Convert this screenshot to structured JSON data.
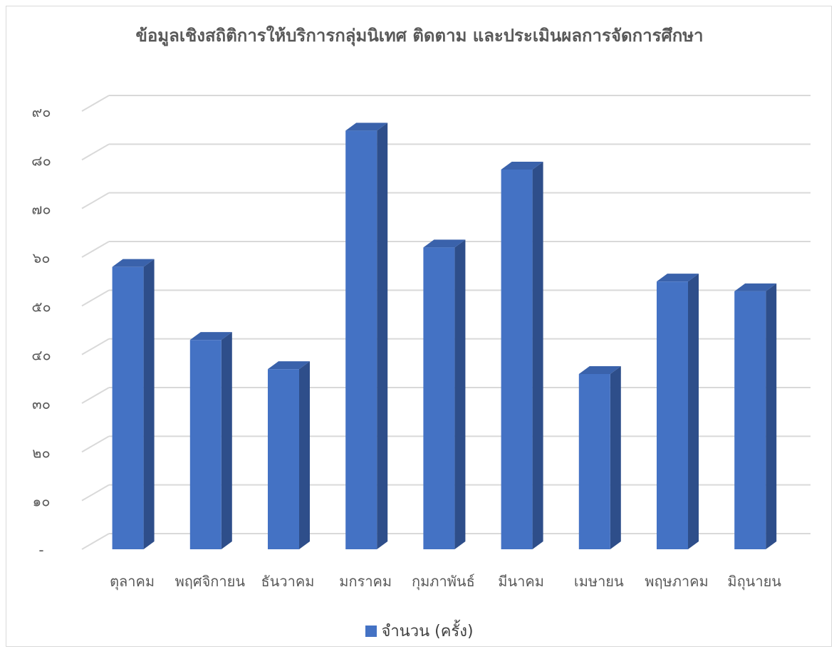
{
  "chart_data": {
    "type": "bar",
    "title": "ข้อมูลเชิงสถิติการให้บริการกลุ่มนิเทศ ติดตาม และประเมินผลการจัดการศึกษา",
    "xlabel": "",
    "ylabel": "",
    "categories": [
      "ตุลาคม",
      "พฤศจิกายน",
      "ธันวาคม",
      "มกราคม",
      "กุมภาพันธ์",
      "มีนาคม",
      "เมษายน",
      "พฤษภาคม",
      "มิถุนายน"
    ],
    "series": [
      {
        "name": "จำนวน (ครั้ง)",
        "values": [
          58,
          43,
          37,
          86,
          62,
          78,
          36,
          55,
          53
        ]
      }
    ],
    "ylim": [
      0,
      90
    ],
    "y_ticks": [
      0,
      10,
      20,
      30,
      40,
      50,
      60,
      70,
      80,
      90
    ],
    "y_tick_labels": [
      "-",
      "๑๐",
      "๒๐",
      "๓๐",
      "๔๐",
      "๕๐",
      "๖๐",
      "๗๐",
      "๘๐",
      "๙๐"
    ],
    "grid": true,
    "legend_position": "bottom",
    "style": "3d-column",
    "colors": {
      "front": "#4472C4",
      "side": "#2E4E8A",
      "top": "#3A62AB",
      "grid": "#d9d9d9",
      "text": "#595959"
    }
  }
}
